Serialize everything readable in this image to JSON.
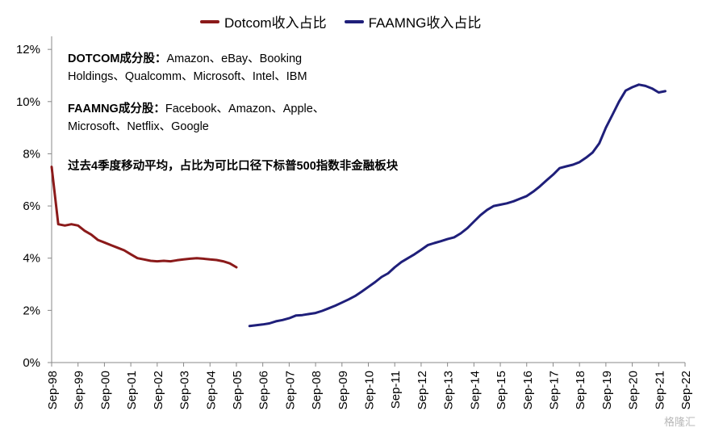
{
  "legend": [
    {
      "label": "Dotcom收入占比",
      "color": "#8B1A1A"
    },
    {
      "label": "FAAMNG收入占比",
      "color": "#1F1F7A"
    }
  ],
  "notes": {
    "dotcom_title": "DOTCOM成分股：",
    "dotcom_line1": "Amazon、eBay、Booking",
    "dotcom_line2": "Holdings、Qualcomm、Microsoft、Intel、IBM",
    "faamng_title": "FAAMNG成分股：",
    "faamng_line1": "Facebook、Amazon、Apple、",
    "faamng_line2": "Microsoft、Netflix、Google",
    "method": "过去4季度移动平均，占比为可比口径下标普500指数非金融板块"
  },
  "watermark": "格隆汇",
  "chart_data": {
    "type": "line",
    "x_ticks": [
      "Sep-98",
      "Sep-99",
      "Sep-00",
      "Sep-01",
      "Sep-02",
      "Sep-03",
      "Sep-04",
      "Sep-05",
      "Sep-06",
      "Sep-07",
      "Sep-08",
      "Sep-09",
      "Sep-10",
      "Sep-11",
      "Sep-12",
      "Sep-13",
      "Sep-14",
      "Sep-15",
      "Sep-16",
      "Sep-17",
      "Sep-18",
      "Sep-19",
      "Sep-20",
      "Sep-21",
      "Sep-22"
    ],
    "y_ticks": [
      "0%",
      "2%",
      "4%",
      "6%",
      "8%",
      "10%",
      "12%"
    ],
    "ylim": [
      0,
      12.5
    ],
    "grid": false,
    "legend_position": "top-center",
    "series": [
      {
        "name": "Dotcom收入占比",
        "color": "#8B1A1A",
        "points": [
          [
            1998.75,
            7.5
          ],
          [
            1999.0,
            5.3
          ],
          [
            1999.25,
            5.25
          ],
          [
            1999.5,
            5.3
          ],
          [
            1999.75,
            5.25
          ],
          [
            2000.0,
            5.05
          ],
          [
            2000.25,
            4.9
          ],
          [
            2000.5,
            4.7
          ],
          [
            2000.75,
            4.6
          ],
          [
            2001.0,
            4.5
          ],
          [
            2001.25,
            4.4
          ],
          [
            2001.5,
            4.3
          ],
          [
            2001.75,
            4.15
          ],
          [
            2002.0,
            4.0
          ],
          [
            2002.25,
            3.95
          ],
          [
            2002.5,
            3.9
          ],
          [
            2002.75,
            3.88
          ],
          [
            2003.0,
            3.9
          ],
          [
            2003.25,
            3.88
          ],
          [
            2003.5,
            3.92
          ],
          [
            2003.75,
            3.95
          ],
          [
            2004.0,
            3.98
          ],
          [
            2004.25,
            4.0
          ],
          [
            2004.5,
            3.98
          ],
          [
            2004.75,
            3.95
          ],
          [
            2005.0,
            3.93
          ],
          [
            2005.25,
            3.88
          ],
          [
            2005.5,
            3.8
          ],
          [
            2005.75,
            3.65
          ]
        ]
      },
      {
        "name": "FAAMNG收入占比",
        "color": "#1F1F7A",
        "points": [
          [
            2006.25,
            1.4
          ],
          [
            2006.5,
            1.43
          ],
          [
            2006.75,
            1.46
          ],
          [
            2007.0,
            1.5
          ],
          [
            2007.25,
            1.58
          ],
          [
            2007.5,
            1.63
          ],
          [
            2007.75,
            1.7
          ],
          [
            2008.0,
            1.8
          ],
          [
            2008.25,
            1.82
          ],
          [
            2008.5,
            1.86
          ],
          [
            2008.75,
            1.9
          ],
          [
            2009.0,
            1.98
          ],
          [
            2009.25,
            2.08
          ],
          [
            2009.5,
            2.18
          ],
          [
            2009.75,
            2.3
          ],
          [
            2010.0,
            2.42
          ],
          [
            2010.25,
            2.55
          ],
          [
            2010.5,
            2.72
          ],
          [
            2010.75,
            2.9
          ],
          [
            2011.0,
            3.08
          ],
          [
            2011.25,
            3.28
          ],
          [
            2011.5,
            3.42
          ],
          [
            2011.75,
            3.65
          ],
          [
            2012.0,
            3.85
          ],
          [
            2012.25,
            4.0
          ],
          [
            2012.5,
            4.15
          ],
          [
            2012.75,
            4.32
          ],
          [
            2013.0,
            4.5
          ],
          [
            2013.25,
            4.58
          ],
          [
            2013.5,
            4.65
          ],
          [
            2013.75,
            4.73
          ],
          [
            2014.0,
            4.8
          ],
          [
            2014.25,
            4.95
          ],
          [
            2014.5,
            5.15
          ],
          [
            2014.75,
            5.4
          ],
          [
            2015.0,
            5.65
          ],
          [
            2015.25,
            5.85
          ],
          [
            2015.5,
            6.0
          ],
          [
            2015.75,
            6.05
          ],
          [
            2016.0,
            6.1
          ],
          [
            2016.25,
            6.18
          ],
          [
            2016.5,
            6.28
          ],
          [
            2016.75,
            6.38
          ],
          [
            2017.0,
            6.55
          ],
          [
            2017.25,
            6.75
          ],
          [
            2017.5,
            6.98
          ],
          [
            2017.75,
            7.2
          ],
          [
            2018.0,
            7.45
          ],
          [
            2018.25,
            7.52
          ],
          [
            2018.5,
            7.58
          ],
          [
            2018.75,
            7.68
          ],
          [
            2019.0,
            7.85
          ],
          [
            2019.25,
            8.05
          ],
          [
            2019.5,
            8.4
          ],
          [
            2019.75,
            9.0
          ],
          [
            2020.0,
            9.5
          ],
          [
            2020.25,
            10.0
          ],
          [
            2020.5,
            10.42
          ],
          [
            2020.75,
            10.55
          ],
          [
            2021.0,
            10.65
          ],
          [
            2021.25,
            10.6
          ],
          [
            2021.5,
            10.5
          ],
          [
            2021.75,
            10.35
          ],
          [
            2022.0,
            10.4
          ]
        ]
      }
    ]
  }
}
